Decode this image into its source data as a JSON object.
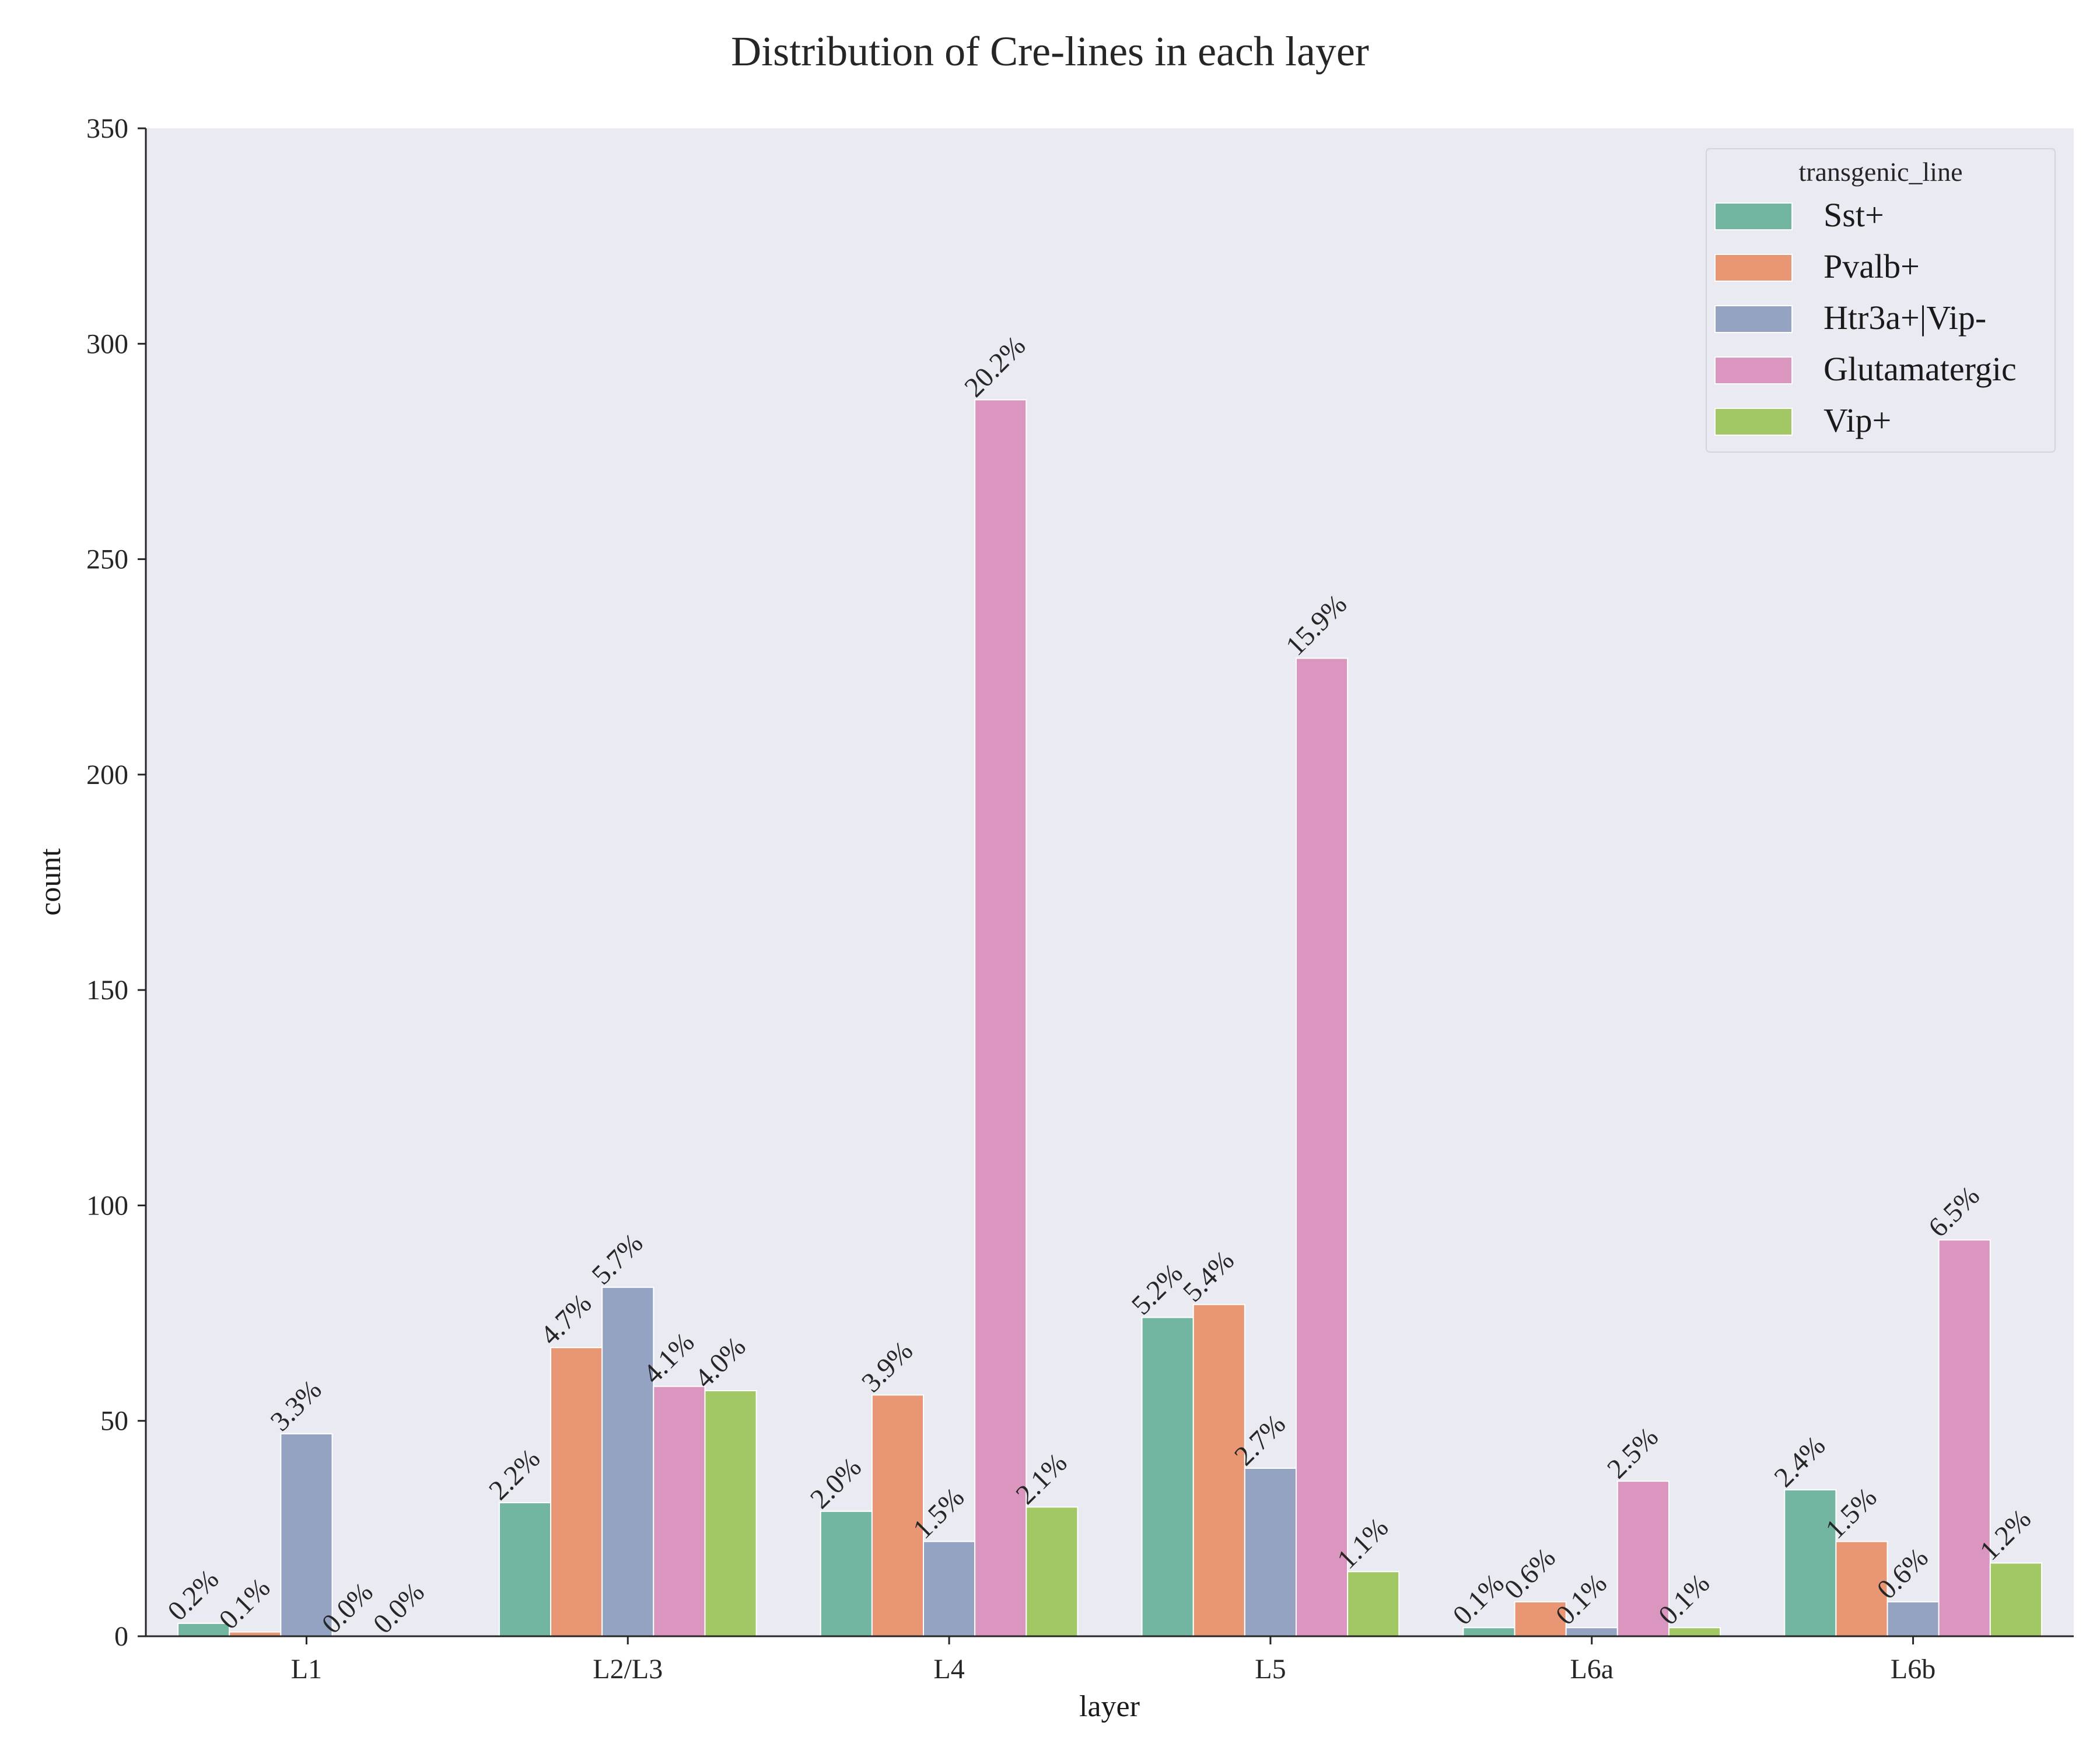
{
  "chart_data": {
    "type": "bar",
    "title": "Distribution of Cre-lines in each layer",
    "xlabel": "layer",
    "ylabel": "count",
    "ylim": [
      0,
      350
    ],
    "yticks": [
      "0",
      "50",
      "100",
      "150",
      "200",
      "250",
      "300",
      "350"
    ],
    "categories": [
      "L1",
      "L2/L3",
      "L4",
      "L5",
      "L6a",
      "L6b"
    ],
    "grid": false,
    "legend": {
      "title": "transgenic_line",
      "placement": "top-right"
    },
    "series": [
      {
        "name": "Sst+",
        "color": "#72b6a1",
        "values": [
          3,
          31,
          29,
          74,
          2,
          34
        ],
        "labels": [
          "0.2%",
          "2.2%",
          "2.0%",
          "5.2%",
          "0.1%",
          "2.4%"
        ]
      },
      {
        "name": "Pvalb+",
        "color": "#e99675",
        "values": [
          1,
          67,
          56,
          77,
          8,
          22
        ],
        "labels": [
          "0.1%",
          "4.7%",
          "3.9%",
          "5.4%",
          "0.6%",
          "1.5%"
        ]
      },
      {
        "name": "Htr3a+|Vip-",
        "color": "#95a3c3",
        "values": [
          47,
          81,
          22,
          39,
          2,
          8
        ],
        "labels": [
          "3.3%",
          "5.7%",
          "1.5%",
          "2.7%",
          "0.1%",
          "0.6%"
        ]
      },
      {
        "name": "Glutamatergic",
        "color": "#db96c0",
        "values": [
          0,
          58,
          287,
          227,
          36,
          92
        ],
        "labels": [
          "0.0%",
          "4.1%",
          "20.2%",
          "15.9%",
          "2.5%",
          "6.5%"
        ]
      },
      {
        "name": "Vip+",
        "color": "#a2c865",
        "values": [
          0,
          57,
          30,
          15,
          2,
          17
        ],
        "labels": [
          "0.0%",
          "4.0%",
          "2.1%",
          "1.1%",
          "0.1%",
          "1.2%"
        ]
      }
    ]
  }
}
